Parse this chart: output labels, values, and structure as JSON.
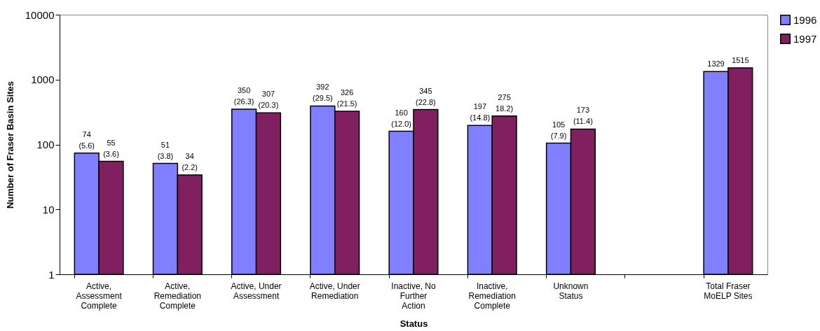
{
  "chart_data": {
    "type": "bar",
    "xlabel": "Status",
    "ylabel": "Number of Fraser Basin Sites",
    "categories": [
      "Active,\nAssessment\nComplete",
      "Active,\nRemediation\nComplete",
      "Active, Under\nAssessment",
      "Active, Under\nRemediation",
      "Inactive, No\nFurther\nAction",
      "Inactive,\nRemediation\nComplete",
      "Unknown\nStatus",
      null,
      "Total Fraser\nMoELP Sites"
    ],
    "series": [
      {
        "name": "1996",
        "color": "#8080ff",
        "values": [
          74,
          51,
          350,
          392,
          160,
          197,
          105,
          null,
          1329
        ],
        "value_labels": [
          "74\n(5.6)",
          "51\n(3.8)",
          "350\n(26.3)",
          "392\n(29.5)",
          "160\n(12.0)",
          "197\n(14.8)",
          "105\n(7.9)",
          null,
          "1329"
        ]
      },
      {
        "name": "1997",
        "color": "#802060",
        "values": [
          55,
          34,
          307,
          326,
          345,
          275,
          173,
          null,
          1515
        ],
        "value_labels": [
          "55\n(3.6)",
          "34\n(2.2)",
          "307\n(20.3)",
          "326\n(21.5)",
          "345\n(22.8)",
          "275\n18.2)",
          "173\n(11.4)",
          null,
          "1515"
        ]
      }
    ],
    "log": true,
    "ylim": [
      1,
      10000
    ],
    "yticks": [
      1,
      10,
      100,
      1000,
      10000
    ],
    "grid": false,
    "legend": "right"
  }
}
